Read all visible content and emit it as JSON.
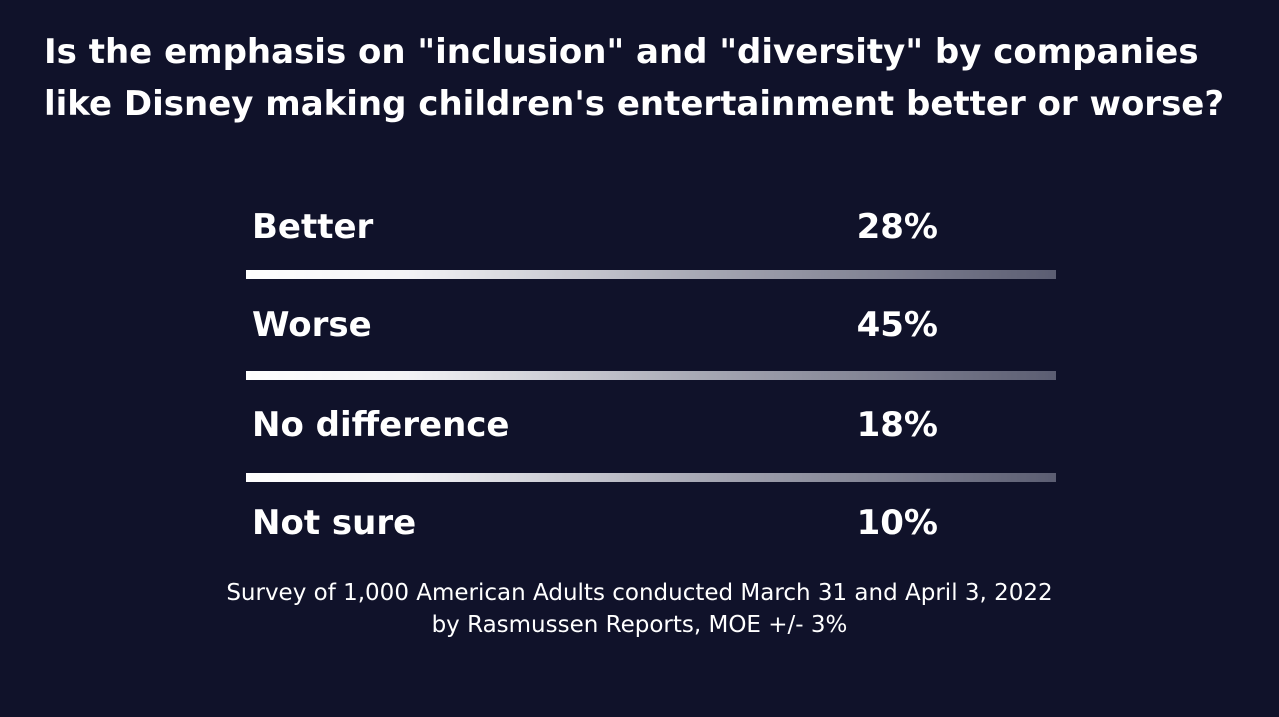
{
  "title": "Is the emphasis on \"inclusion\" and \"diversity\" by companies like Disney making children's entertainment better or worse?",
  "chart_data": {
    "type": "table",
    "title": "Is the emphasis on \"inclusion\" and \"diversity\" by companies like Disney making children's entertainment better or worse?",
    "categories": [
      "Better",
      "Worse",
      "No difference",
      "Not sure"
    ],
    "values": [
      28,
      45,
      18,
      10
    ],
    "value_labels": [
      "28%",
      "45%",
      "18%",
      "10%"
    ],
    "unit": "%"
  },
  "footnote": {
    "line1": "Survey of 1,000 American Adults conducted March 31 and April 3, 2022",
    "line2": "by Rasmussen Reports, MOE +/- 3%"
  },
  "colors": {
    "background": "#10122a",
    "text": "#ffffff",
    "divider_start": "#ffffff",
    "divider_end": "#5b5d72"
  }
}
